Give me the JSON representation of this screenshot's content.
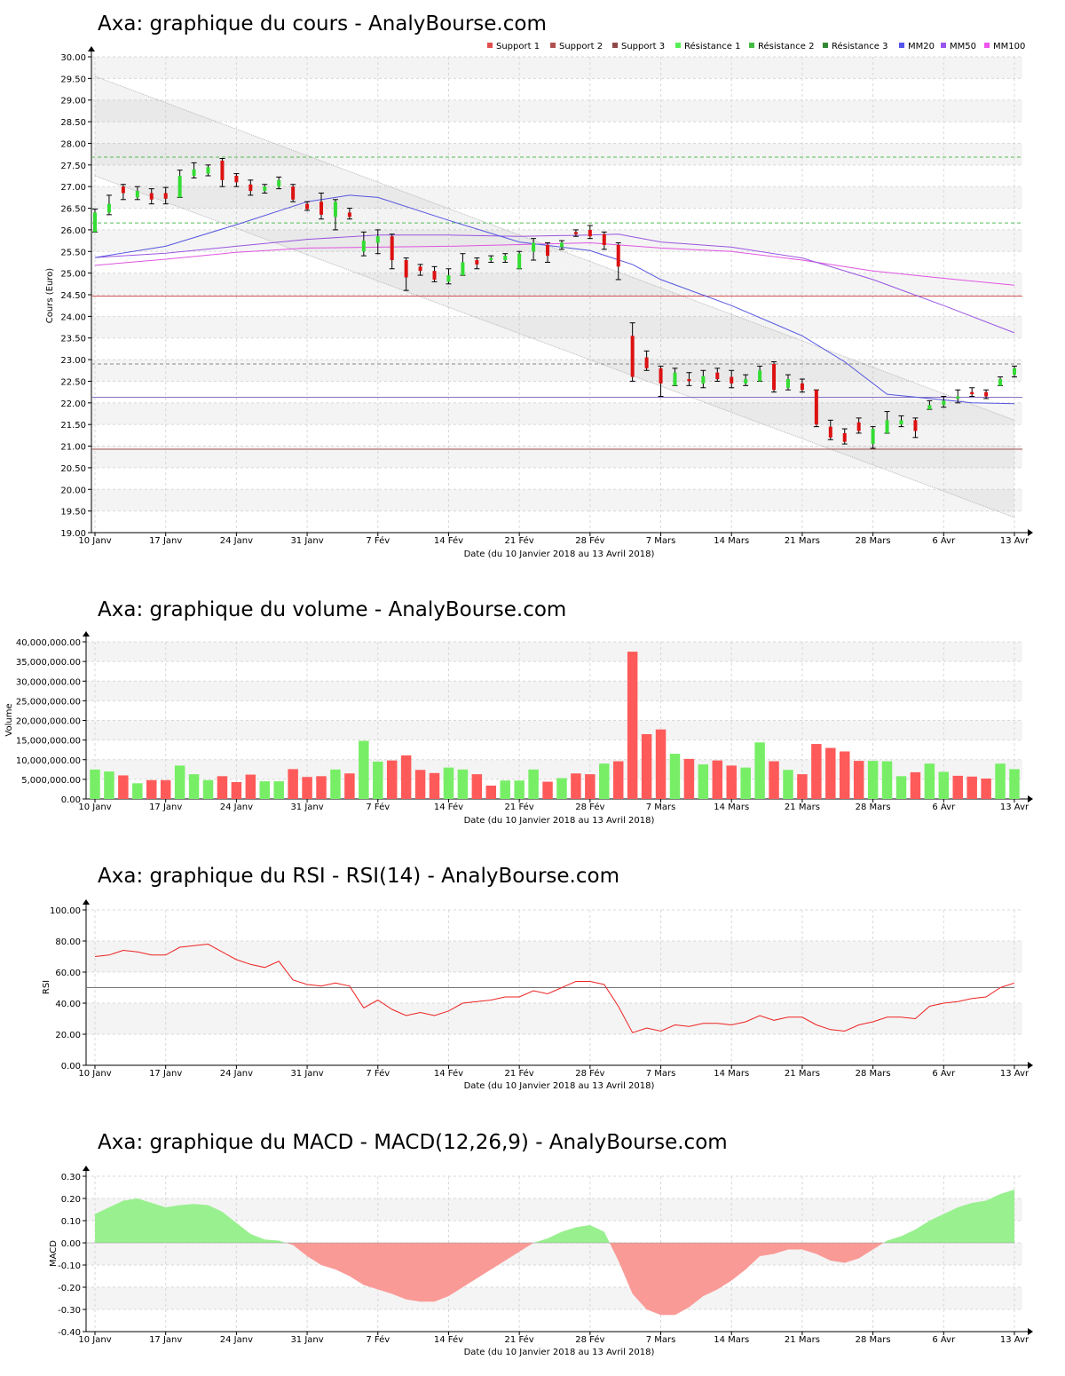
{
  "chart_data": [
    {
      "type": "candlestick",
      "title": "Axa: graphique du cours - AnalyBourse.com",
      "xlabel": "Date (du 10 Janvier 2018 au 13 Avril 2018)",
      "ylabel": "Cours (Euro)",
      "ylim": [
        19,
        30
      ],
      "yticks": [
        "19.00",
        "19.50",
        "20.00",
        "20.50",
        "21.00",
        "21.50",
        "22.00",
        "22.50",
        "23.00",
        "23.50",
        "24.00",
        "24.50",
        "25.00",
        "25.50",
        "26.00",
        "26.50",
        "27.00",
        "27.50",
        "28.00",
        "28.50",
        "29.00",
        "29.50",
        "30.00"
      ],
      "xticks": [
        {
          "label": "10 Janv",
          "i": 0
        },
        {
          "label": "17 Janv",
          "i": 5
        },
        {
          "label": "24 Janv",
          "i": 10
        },
        {
          "label": "31 Janv",
          "i": 15
        },
        {
          "label": "7 Fév",
          "i": 20
        },
        {
          "label": "14 Fév",
          "i": 25
        },
        {
          "label": "21 Fév",
          "i": 30
        },
        {
          "label": "28 Fév",
          "i": 35
        },
        {
          "label": "7 Mars",
          "i": 40
        },
        {
          "label": "14 Mars",
          "i": 45
        },
        {
          "label": "21 Mars",
          "i": 50
        },
        {
          "label": "28 Mars",
          "i": 55
        },
        {
          "label": "6 Avr",
          "i": 60
        },
        {
          "label": "13 Avr",
          "i": 65
        }
      ],
      "legend": [
        {
          "name": "Support 1",
          "color": "#e05050"
        },
        {
          "name": "Support 2",
          "color": "#b05050"
        },
        {
          "name": "Support 3",
          "color": "#904848"
        },
        {
          "name": "Résistance 1",
          "color": "#55ee55"
        },
        {
          "name": "Résistance 2",
          "color": "#44bb44"
        },
        {
          "name": "Résistance 3",
          "color": "#338833"
        },
        {
          "name": "MM20",
          "color": "#5555ee"
        },
        {
          "name": "MM50",
          "color": "#9955ee"
        },
        {
          "name": "MM100",
          "color": "#ee55ee"
        }
      ],
      "levels": {
        "support1": 24.47,
        "support2": 22.13,
        "support3": 20.93,
        "resistance1": 22.9,
        "resistance2": 26.16,
        "resistance3": 27.68
      },
      "candles": [
        [
          25.95,
          26.4,
          26.48,
          25.95
        ],
        [
          26.4,
          26.6,
          26.8,
          26.35
        ],
        [
          27.0,
          26.85,
          27.05,
          26.7
        ],
        [
          26.75,
          26.9,
          27.0,
          26.7
        ],
        [
          26.85,
          26.7,
          26.95,
          26.6
        ],
        [
          26.85,
          26.72,
          26.98,
          26.6
        ],
        [
          26.75,
          27.25,
          27.38,
          26.75
        ],
        [
          27.25,
          27.4,
          27.55,
          27.2
        ],
        [
          27.3,
          27.45,
          27.5,
          27.25
        ],
        [
          27.6,
          27.15,
          27.65,
          27.0
        ],
        [
          27.25,
          27.1,
          27.3,
          27.0
        ],
        [
          27.05,
          26.9,
          27.15,
          26.8
        ],
        [
          26.9,
          27.0,
          27.05,
          26.85
        ],
        [
          27.0,
          27.15,
          27.22,
          26.95
        ],
        [
          27.0,
          26.7,
          27.05,
          26.65
        ],
        [
          26.6,
          26.48,
          26.65,
          26.45
        ],
        [
          26.65,
          26.35,
          26.85,
          26.25
        ],
        [
          26.3,
          26.65,
          26.7,
          26.0
        ],
        [
          26.4,
          26.3,
          26.5,
          26.25
        ],
        [
          25.5,
          25.75,
          25.95,
          25.4
        ],
        [
          25.7,
          25.85,
          26.0,
          25.45
        ],
        [
          25.85,
          25.3,
          25.9,
          25.1
        ],
        [
          25.3,
          24.9,
          25.35,
          24.6
        ],
        [
          25.15,
          25.05,
          25.2,
          24.95
        ],
        [
          25.05,
          24.85,
          25.15,
          24.8
        ],
        [
          24.8,
          24.95,
          25.1,
          24.75
        ],
        [
          24.95,
          25.25,
          25.45,
          24.95
        ],
        [
          25.3,
          25.2,
          25.35,
          25.1
        ],
        [
          25.3,
          25.35,
          25.4,
          25.25
        ],
        [
          25.3,
          25.4,
          25.45,
          25.25
        ],
        [
          25.1,
          25.45,
          25.5,
          25.1
        ],
        [
          25.5,
          25.7,
          25.8,
          25.3
        ],
        [
          25.65,
          25.4,
          25.7,
          25.25
        ],
        [
          25.6,
          25.7,
          25.75,
          25.55
        ],
        [
          25.95,
          25.9,
          26.0,
          25.85
        ],
        [
          26.0,
          25.85,
          26.1,
          25.8
        ],
        [
          25.9,
          25.65,
          25.95,
          25.55
        ],
        [
          25.65,
          25.15,
          25.7,
          24.85
        ],
        [
          23.55,
          22.6,
          23.85,
          22.5
        ],
        [
          23.05,
          22.8,
          23.2,
          22.75
        ],
        [
          22.8,
          22.45,
          22.85,
          22.15
        ],
        [
          22.4,
          22.7,
          22.8,
          22.4
        ],
        [
          22.55,
          22.5,
          22.7,
          22.4
        ],
        [
          22.45,
          22.62,
          22.75,
          22.35
        ],
        [
          22.7,
          22.55,
          22.8,
          22.5
        ],
        [
          22.6,
          22.45,
          22.75,
          22.35
        ],
        [
          22.45,
          22.55,
          22.65,
          22.4
        ],
        [
          22.5,
          22.75,
          22.85,
          22.5
        ],
        [
          22.9,
          22.3,
          22.95,
          22.25
        ],
        [
          22.35,
          22.55,
          22.65,
          22.3
        ],
        [
          22.45,
          22.3,
          22.55,
          22.25
        ],
        [
          22.3,
          21.5,
          22.3,
          21.45
        ],
        [
          21.45,
          21.2,
          21.6,
          21.15
        ],
        [
          21.3,
          21.1,
          21.4,
          21.05
        ],
        [
          21.55,
          21.35,
          21.65,
          21.3
        ],
        [
          21.05,
          21.4,
          21.45,
          20.95
        ],
        [
          21.3,
          21.6,
          21.8,
          21.3
        ],
        [
          21.5,
          21.6,
          21.7,
          21.45
        ],
        [
          21.6,
          21.35,
          21.65,
          21.2
        ],
        [
          21.85,
          21.95,
          22.05,
          21.85
        ],
        [
          21.95,
          22.05,
          22.15,
          21.9
        ],
        [
          22.1,
          22.15,
          22.3,
          22.0
        ],
        [
          22.25,
          22.2,
          22.35,
          22.15
        ],
        [
          22.25,
          22.15,
          22.3,
          22.1
        ],
        [
          22.4,
          22.55,
          22.6,
          22.4
        ],
        [
          22.65,
          22.8,
          22.85,
          22.6
        ]
      ],
      "mm20": [
        [
          0,
          25.36
        ],
        [
          5,
          25.62
        ],
        [
          10,
          26.12
        ],
        [
          15,
          26.65
        ],
        [
          18,
          26.8
        ],
        [
          20,
          26.75
        ],
        [
          25,
          26.22
        ],
        [
          30,
          25.72
        ],
        [
          35,
          25.52
        ],
        [
          38,
          25.2
        ],
        [
          40,
          24.85
        ],
        [
          45,
          24.25
        ],
        [
          50,
          23.55
        ],
        [
          53,
          22.95
        ],
        [
          56,
          22.2
        ],
        [
          59,
          22.1
        ],
        [
          62,
          22.0
        ],
        [
          65,
          21.98
        ]
      ],
      "mm50": [
        [
          0,
          25.36
        ],
        [
          5,
          25.46
        ],
        [
          10,
          25.62
        ],
        [
          15,
          25.78
        ],
        [
          20,
          25.88
        ],
        [
          25,
          25.88
        ],
        [
          30,
          25.85
        ],
        [
          35,
          25.88
        ],
        [
          37,
          25.9
        ],
        [
          40,
          25.72
        ],
        [
          45,
          25.6
        ],
        [
          50,
          25.35
        ],
        [
          55,
          24.85
        ],
        [
          60,
          24.25
        ],
        [
          65,
          23.62
        ]
      ],
      "mm100": [
        [
          0,
          25.18
        ],
        [
          5,
          25.32
        ],
        [
          10,
          25.48
        ],
        [
          15,
          25.58
        ],
        [
          20,
          25.6
        ],
        [
          25,
          25.62
        ],
        [
          30,
          25.66
        ],
        [
          35,
          25.7
        ],
        [
          40,
          25.58
        ],
        [
          45,
          25.5
        ],
        [
          50,
          25.3
        ],
        [
          55,
          25.05
        ],
        [
          60,
          24.88
        ],
        [
          65,
          24.72
        ]
      ],
      "channel": {
        "upper": [
          [
            0,
            29.55
          ],
          [
            65,
            21.6
          ]
        ],
        "lower": [
          [
            0,
            27.25
          ],
          [
            65,
            19.35
          ]
        ]
      }
    },
    {
      "type": "bar",
      "title": "Axa: graphique du volume - AnalyBourse.com",
      "xlabel": "Date (du 10 Janvier 2018 au 13 Avril 2018)",
      "ylabel": "Volume",
      "ylim": [
        0,
        40000000
      ],
      "yticks": [
        "0.00",
        "5,000,000.00",
        "10,000,000.00",
        "15,000,000.00",
        "20,000,000.00",
        "25,000,000.00",
        "30,000,000.00",
        "35,000,000.00",
        "40,000,000.00"
      ],
      "xticks": [
        {
          "label": "10 Janv",
          "i": 0
        },
        {
          "label": "17 Janv",
          "i": 5
        },
        {
          "label": "24 Janv",
          "i": 10
        },
        {
          "label": "31 Janv",
          "i": 15
        },
        {
          "label": "7 Fév",
          "i": 20
        },
        {
          "label": "14 Fév",
          "i": 25
        },
        {
          "label": "21 Fév",
          "i": 30
        },
        {
          "label": "28 Fév",
          "i": 35
        },
        {
          "label": "7 Mars",
          "i": 40
        },
        {
          "label": "14 Mars",
          "i": 45
        },
        {
          "label": "21 Mars",
          "i": 50
        },
        {
          "label": "28 Mars",
          "i": 55
        },
        {
          "label": "6 Avr",
          "i": 60
        },
        {
          "label": "13 Avr",
          "i": 65
        }
      ],
      "values": [
        7500000,
        7000000,
        6000000,
        4000000,
        4800000,
        4800000,
        8500000,
        6300000,
        4800000,
        5800000,
        4300000,
        6200000,
        4500000,
        4500000,
        7600000,
        5600000,
        5800000,
        7500000,
        6500000,
        14800000,
        9500000,
        9800000,
        11100000,
        7400000,
        6600000,
        8000000,
        7500000,
        6300000,
        3400000,
        4700000,
        4700000,
        7500000,
        4400000,
        5300000,
        6500000,
        6300000,
        9000000,
        9600000,
        37500000,
        16500000,
        17700000,
        11500000,
        10200000,
        8800000,
        9800000,
        8500000,
        8000000,
        14400000,
        9600000,
        7400000,
        6300000,
        14000000,
        13000000,
        12100000,
        9700000,
        9700000,
        9600000,
        5800000,
        6800000,
        9000000,
        6900000,
        5900000,
        5700000,
        5200000,
        9000000,
        7600000
      ],
      "up": [
        true,
        true,
        false,
        true,
        false,
        false,
        true,
        true,
        true,
        false,
        false,
        false,
        true,
        true,
        false,
        false,
        false,
        true,
        false,
        true,
        true,
        false,
        false,
        false,
        false,
        true,
        true,
        false,
        false,
        true,
        true,
        true,
        false,
        true,
        false,
        false,
        true,
        false,
        false,
        false,
        false,
        true,
        false,
        true,
        false,
        false,
        true,
        true,
        false,
        true,
        false,
        false,
        false,
        false,
        false,
        true,
        true,
        true,
        false,
        true,
        true,
        false,
        false,
        false,
        true,
        true
      ]
    },
    {
      "type": "line",
      "title": "Axa: graphique du RSI - RSI(14) - AnalyBourse.com",
      "xlabel": "Date (du 10 Janvier 2018 au 13 Avril 2018)",
      "ylabel": "RSI",
      "ylim": [
        0,
        100
      ],
      "yticks": [
        "0.00",
        "20.00",
        "40.00",
        "60.00",
        "80.00",
        "100.00"
      ],
      "xticks": [
        {
          "label": "10 Janv",
          "i": 0
        },
        {
          "label": "17 Janv",
          "i": 5
        },
        {
          "label": "24 Janv",
          "i": 10
        },
        {
          "label": "31 Janv",
          "i": 15
        },
        {
          "label": "7 Fév",
          "i": 20
        },
        {
          "label": "14 Fév",
          "i": 25
        },
        {
          "label": "21 Fév",
          "i": 30
        },
        {
          "label": "28 Fév",
          "i": 35
        },
        {
          "label": "7 Mars",
          "i": 40
        },
        {
          "label": "14 Mars",
          "i": 45
        },
        {
          "label": "21 Mars",
          "i": 50
        },
        {
          "label": "28 Mars",
          "i": 55
        },
        {
          "label": "6 Avr",
          "i": 60
        },
        {
          "label": "13 Avr",
          "i": 65
        }
      ],
      "reference": 50,
      "values": [
        70,
        71,
        74,
        73,
        71,
        71,
        76,
        77,
        78,
        73,
        68,
        65,
        63,
        67,
        55,
        52,
        51,
        53,
        51,
        37,
        42,
        36,
        32,
        34,
        32,
        35,
        40,
        41,
        42,
        44,
        44,
        48,
        46,
        50,
        54,
        54,
        52,
        38,
        21,
        24,
        22,
        26,
        25,
        27,
        27,
        26,
        28,
        32,
        29,
        31,
        31,
        26,
        23,
        22,
        26,
        28,
        31,
        31,
        30,
        38,
        40,
        41,
        43,
        44,
        50,
        53
      ]
    },
    {
      "type": "area",
      "title": "Axa: graphique du MACD - MACD(12,26,9) - AnalyBourse.com",
      "xlabel": "Date (du 10 Janvier 2018 au 13 Avril 2018)",
      "ylabel": "MACD",
      "ylim": [
        -0.4,
        0.3
      ],
      "yticks": [
        "-0.40",
        "-0.30",
        "-0.20",
        "-0.10",
        "0.00",
        "0.10",
        "0.20",
        "0.30"
      ],
      "xticks": [
        {
          "label": "10 Janv",
          "i": 0
        },
        {
          "label": "17 Janv",
          "i": 5
        },
        {
          "label": "24 Janv",
          "i": 10
        },
        {
          "label": "31 Janv",
          "i": 15
        },
        {
          "label": "7 Fév",
          "i": 20
        },
        {
          "label": "14 Fév",
          "i": 25
        },
        {
          "label": "21 Fév",
          "i": 30
        },
        {
          "label": "28 Fév",
          "i": 35
        },
        {
          "label": "7 Mars",
          "i": 40
        },
        {
          "label": "14 Mars",
          "i": 45
        },
        {
          "label": "21 Mars",
          "i": 50
        },
        {
          "label": "28 Mars",
          "i": 55
        },
        {
          "label": "6 Avr",
          "i": 60
        },
        {
          "label": "13 Avr",
          "i": 65
        }
      ],
      "values": [
        0.13,
        0.16,
        0.19,
        0.2,
        0.18,
        0.16,
        0.17,
        0.175,
        0.17,
        0.14,
        0.09,
        0.04,
        0.015,
        0.01,
        -0.01,
        -0.06,
        -0.1,
        -0.12,
        -0.15,
        -0.19,
        -0.21,
        -0.23,
        -0.255,
        -0.265,
        -0.265,
        -0.24,
        -0.2,
        -0.16,
        -0.12,
        -0.08,
        -0.04,
        0.0,
        0.02,
        0.05,
        0.07,
        0.08,
        0.05,
        -0.08,
        -0.23,
        -0.3,
        -0.325,
        -0.325,
        -0.29,
        -0.24,
        -0.21,
        -0.17,
        -0.12,
        -0.06,
        -0.05,
        -0.03,
        -0.03,
        -0.05,
        -0.08,
        -0.09,
        -0.07,
        -0.03,
        0.01,
        0.03,
        0.06,
        0.1,
        0.13,
        0.16,
        0.18,
        0.19,
        0.22,
        0.24
      ]
    }
  ]
}
